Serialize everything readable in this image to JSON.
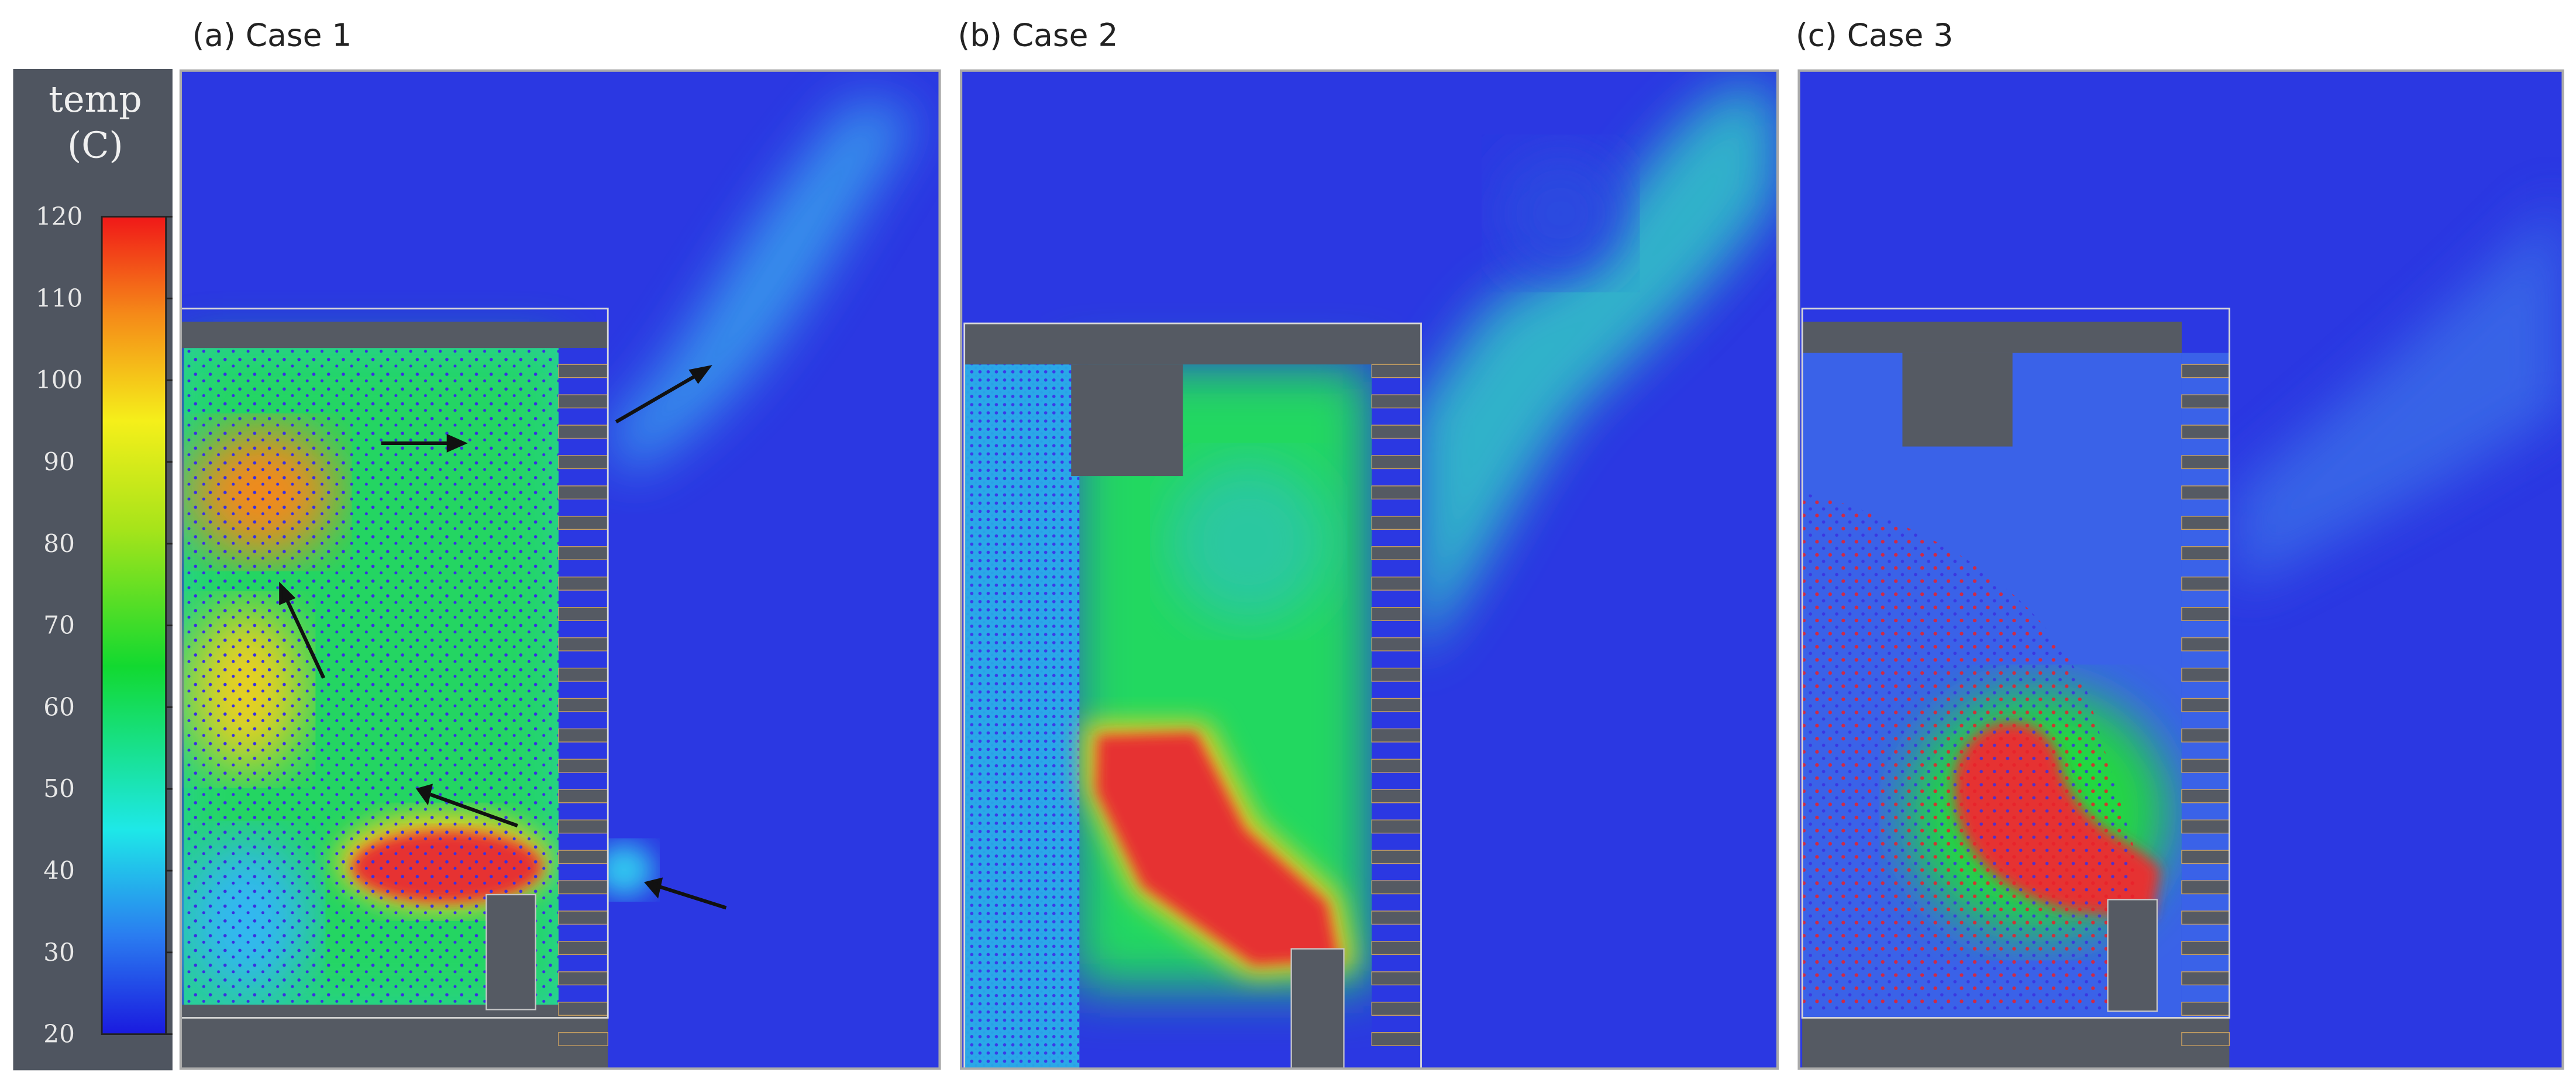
{
  "colorbar": {
    "title": "temp",
    "unit": "(C)",
    "ticks": [
      120,
      110,
      100,
      90,
      80,
      70,
      60,
      50,
      40,
      30,
      20
    ]
  },
  "panels": [
    {
      "label": "(a) Case 1"
    },
    {
      "label": "(b) Case 2"
    },
    {
      "label": "(c) Case 3"
    }
  ]
}
